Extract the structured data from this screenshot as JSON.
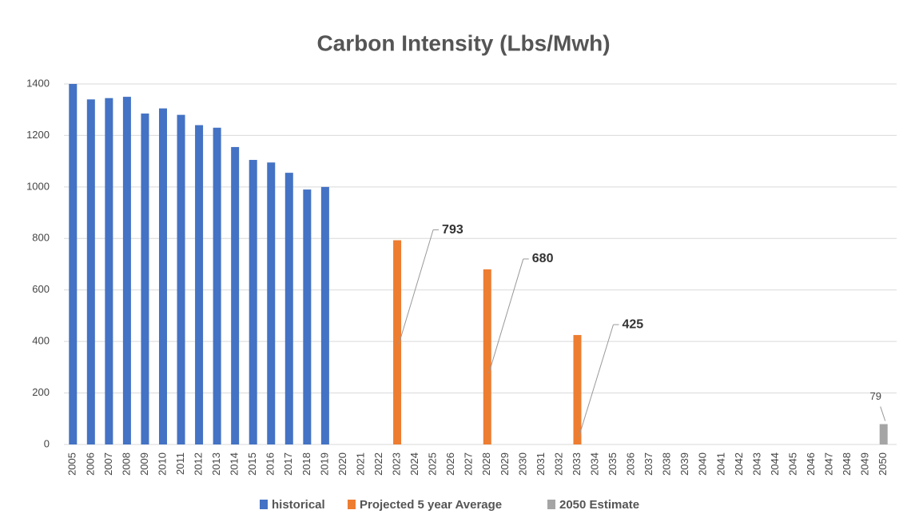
{
  "chart_data": {
    "type": "bar",
    "title": "Carbon Intensity (Lbs/Mwh)",
    "categories": [
      "2005",
      "2006",
      "2007",
      "2008",
      "2009",
      "2010",
      "2011",
      "2012",
      "2013",
      "2014",
      "2015",
      "2016",
      "2017",
      "2018",
      "2019",
      "2020",
      "2021",
      "2022",
      "2023",
      "2024",
      "2025",
      "2026",
      "2027",
      "2028",
      "2029",
      "2030",
      "2031",
      "2032",
      "2033",
      "2034",
      "2035",
      "2036",
      "2037",
      "2038",
      "2039",
      "2040",
      "2041",
      "2042",
      "2043",
      "2044",
      "2045",
      "2046",
      "2047",
      "2048",
      "2049",
      "2050"
    ],
    "series": [
      {
        "name": "historical",
        "color": "#4472c4",
        "values": [
          1400,
          1340,
          1345,
          1350,
          1285,
          1305,
          1280,
          1240,
          1230,
          1155,
          1105,
          1095,
          1055,
          990,
          1000,
          null,
          null,
          null,
          null,
          null,
          null,
          null,
          null,
          null,
          null,
          null,
          null,
          null,
          null,
          null,
          null,
          null,
          null,
          null,
          null,
          null,
          null,
          null,
          null,
          null,
          null,
          null,
          null,
          null,
          null,
          null
        ]
      },
      {
        "name": "Projected 5 year Average",
        "color": "#ed7d31",
        "data_labels": true,
        "values": [
          null,
          null,
          null,
          null,
          null,
          null,
          null,
          null,
          null,
          null,
          null,
          null,
          null,
          null,
          null,
          null,
          null,
          null,
          793,
          null,
          null,
          null,
          null,
          680,
          null,
          null,
          null,
          null,
          425,
          null,
          null,
          null,
          null,
          null,
          null,
          null,
          null,
          null,
          null,
          null,
          null,
          null,
          null,
          null,
          null,
          null
        ]
      },
      {
        "name": "2050 Estimate",
        "color": "#a5a5a5",
        "data_labels": true,
        "values": [
          null,
          null,
          null,
          null,
          null,
          null,
          null,
          null,
          null,
          null,
          null,
          null,
          null,
          null,
          null,
          null,
          null,
          null,
          null,
          null,
          null,
          null,
          null,
          null,
          null,
          null,
          null,
          null,
          null,
          null,
          null,
          null,
          null,
          null,
          null,
          null,
          null,
          null,
          null,
          null,
          null,
          null,
          null,
          null,
          null,
          79
        ]
      }
    ],
    "ylim": [
      0,
      1400
    ],
    "yticks": [
      0,
      200,
      400,
      600,
      800,
      1000,
      1200,
      1400
    ],
    "grid": true
  }
}
